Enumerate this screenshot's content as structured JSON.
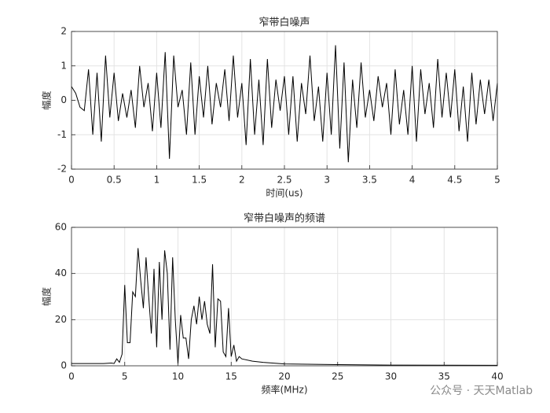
{
  "chart_data": [
    {
      "type": "line",
      "title": "窄带白噪声",
      "xlabel": "时间(us)",
      "ylabel": "幅度",
      "xlim": [
        0,
        5
      ],
      "ylim": [
        -2,
        2
      ],
      "xticks": [
        0,
        0.5,
        1,
        1.5,
        2,
        2.5,
        3,
        3.5,
        4,
        4.5,
        5
      ],
      "yticks": [
        -2,
        -1,
        0,
        1,
        2
      ],
      "grid": true,
      "x": [
        0,
        0.05,
        0.1,
        0.15,
        0.2,
        0.25,
        0.3,
        0.35,
        0.4,
        0.45,
        0.5,
        0.55,
        0.6,
        0.65,
        0.7,
        0.75,
        0.8,
        0.85,
        0.9,
        0.95,
        1,
        1.05,
        1.1,
        1.15,
        1.2,
        1.25,
        1.3,
        1.35,
        1.4,
        1.45,
        1.5,
        1.55,
        1.6,
        1.65,
        1.7,
        1.75,
        1.8,
        1.85,
        1.9,
        1.95,
        2,
        2.05,
        2.1,
        2.15,
        2.2,
        2.25,
        2.3,
        2.35,
        2.4,
        2.45,
        2.5,
        2.55,
        2.6,
        2.65,
        2.7,
        2.75,
        2.8,
        2.85,
        2.9,
        2.95,
        3,
        3.05,
        3.1,
        3.15,
        3.2,
        3.25,
        3.3,
        3.35,
        3.4,
        3.45,
        3.5,
        3.55,
        3.6,
        3.65,
        3.7,
        3.75,
        3.8,
        3.85,
        3.9,
        3.95,
        4,
        4.05,
        4.1,
        4.15,
        4.2,
        4.25,
        4.3,
        4.35,
        4.4,
        4.45,
        4.5,
        4.55,
        4.6,
        4.65,
        4.7,
        4.75,
        4.8,
        4.85,
        4.9,
        4.95,
        5
      ],
      "series": [
        {
          "color": "#000000",
          "values": [
            0.4,
            0.2,
            -0.2,
            -0.3,
            0.9,
            -1.0,
            0.8,
            -1.2,
            1.3,
            -0.5,
            0.8,
            -0.6,
            0.2,
            -0.5,
            0.3,
            -0.8,
            1.0,
            -0.2,
            0.5,
            -0.9,
            0.8,
            -0.8,
            1.4,
            -1.7,
            1.3,
            -0.2,
            0.3,
            -1.0,
            1.1,
            -1.0,
            0.7,
            -0.5,
            1.0,
            -0.7,
            0.5,
            -0.2,
            0.9,
            -0.6,
            1.3,
            -0.5,
            0.5,
            -1.3,
            1.2,
            -1.0,
            0.6,
            -1.3,
            1.2,
            -0.8,
            0.6,
            -0.3,
            0.7,
            -1.0,
            0.7,
            -1.2,
            0.5,
            -0.4,
            1.3,
            -0.6,
            0.4,
            -1.2,
            0.8,
            -1.0,
            1.6,
            -1.4,
            1.1,
            -1.8,
            0.6,
            -0.8,
            1.1,
            -0.5,
            0.3,
            -0.6,
            0.7,
            -0.2,
            0.5,
            -1.0,
            0.9,
            -0.7,
            0.3,
            -1.0,
            1.0,
            -1.2,
            0.9,
            -0.4,
            0.5,
            -0.8,
            1.2,
            -0.5,
            0.8,
            -0.5,
            0.9,
            -0.9,
            0.4,
            -1.2,
            0.8,
            -0.7,
            0.6,
            -0.4,
            0.6,
            -0.6,
            0.5
          ]
        }
      ]
    },
    {
      "type": "line",
      "title": "窄带白噪声的频谱",
      "xlabel": "频率(MHz)",
      "ylabel": "幅度",
      "xlim": [
        0,
        40
      ],
      "ylim": [
        0,
        60
      ],
      "xticks": [
        0,
        5,
        10,
        15,
        20,
        25,
        30,
        35,
        40
      ],
      "yticks": [
        0,
        20,
        40,
        60
      ],
      "grid": true,
      "x": [
        0,
        3,
        3.75,
        4,
        4.25,
        4.5,
        4.75,
        5,
        5.25,
        5.5,
        5.75,
        6,
        6.25,
        6.5,
        6.75,
        7,
        7.25,
        7.5,
        7.75,
        8,
        8.25,
        8.5,
        8.75,
        9,
        9.25,
        9.5,
        9.75,
        10,
        10.25,
        10.5,
        10.75,
        11,
        11.25,
        11.5,
        11.75,
        12,
        12.25,
        12.5,
        12.75,
        13,
        13.25,
        13.5,
        13.75,
        14,
        14.25,
        14.5,
        14.75,
        15,
        15.25,
        15.5,
        15.75,
        16,
        17,
        18,
        20,
        25,
        30,
        40
      ],
      "series": [
        {
          "color": "#000000",
          "values": [
            1,
            1,
            1.2,
            1,
            3,
            1.5,
            5,
            35,
            10,
            10,
            32,
            30,
            51,
            37,
            25,
            47,
            30,
            14,
            42,
            8,
            45,
            20,
            50,
            40,
            7,
            47,
            20,
            1,
            22,
            12,
            12,
            3,
            20,
            26,
            18,
            30,
            20,
            28,
            18,
            14,
            44,
            8,
            29,
            28,
            6,
            4,
            25,
            4,
            9,
            2,
            4,
            3,
            2,
            1.5,
            0.8,
            0.5,
            0.3,
            0.2
          ]
        }
      ]
    }
  ],
  "watermark": "公众号 · 天天Matlab"
}
